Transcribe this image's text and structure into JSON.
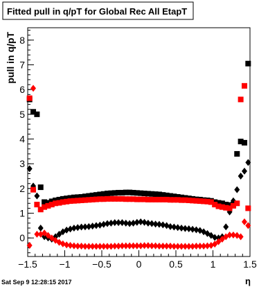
{
  "chart_data": {
    "type": "scatter",
    "title": "Fitted pull in q/pT for Global Rec All EtapT",
    "ylabel": "pull in q/pT",
    "xlabel": "η",
    "footer": "Sat Sep  9 12:28:15 2017",
    "xlim": [
      -1.5,
      1.5
    ],
    "ylim": [
      -0.75,
      8.5
    ],
    "x_ticks": [
      -1.5,
      -1,
      -0.5,
      0,
      0.5,
      1,
      1.5
    ],
    "x_tick_labels": [
      "−1.5",
      "−1",
      "−0.5",
      "0",
      "0.5",
      "1",
      "1.5"
    ],
    "y_ticks": [
      0,
      1,
      2,
      3,
      4,
      5,
      6,
      7,
      8
    ],
    "y_tick_labels": [
      "0",
      "1",
      "2",
      "3",
      "4",
      "5",
      "6",
      "7",
      "8"
    ],
    "grid": false,
    "colors": {
      "black": "#000000",
      "red": "#ff0000"
    },
    "series": [
      {
        "color": "#000000",
        "marker": "square",
        "x": [
          -1.475,
          -1.425,
          -1.375,
          -1.325,
          -1.275,
          -1.225,
          -1.175,
          -1.125,
          -1.075,
          -1.025,
          -0.975,
          -0.925,
          -0.875,
          -0.825,
          -0.775,
          -0.725,
          -0.675,
          -0.625,
          -0.575,
          -0.525,
          -0.475,
          -0.425,
          -0.375,
          -0.325,
          -0.275,
          -0.225,
          -0.175,
          -0.125,
          -0.075,
          -0.025,
          0.025,
          0.075,
          0.125,
          0.175,
          0.225,
          0.275,
          0.325,
          0.375,
          0.425,
          0.475,
          0.525,
          0.575,
          0.625,
          0.675,
          0.725,
          0.775,
          0.825,
          0.875,
          0.925,
          0.975,
          1.025,
          1.075,
          1.125,
          1.175,
          1.225,
          1.275,
          1.325,
          1.375,
          1.425,
          1.475
        ],
        "y": [
          5.6,
          5.1,
          5.0,
          2.05,
          1.45,
          1.42,
          1.48,
          1.52,
          1.55,
          1.58,
          1.6,
          1.62,
          1.64,
          1.65,
          1.66,
          1.68,
          1.7,
          1.72,
          1.74,
          1.76,
          1.78,
          1.8,
          1.81,
          1.82,
          1.83,
          1.83,
          1.84,
          1.84,
          1.83,
          1.82,
          1.81,
          1.8,
          1.79,
          1.78,
          1.77,
          1.76,
          1.74,
          1.72,
          1.7,
          1.68,
          1.66,
          1.64,
          1.62,
          1.6,
          1.58,
          1.56,
          1.55,
          1.53,
          1.52,
          1.5,
          1.45,
          1.42,
          1.4,
          1.35,
          1.33,
          1.35,
          3.4,
          3.9,
          3.85,
          7.05
        ]
      },
      {
        "color": "#000000",
        "marker": "diamond",
        "x": [
          -1.475,
          -1.425,
          -1.375,
          -1.325,
          -1.275,
          -1.225,
          -1.175,
          -1.125,
          -1.075,
          -1.025,
          -0.975,
          -0.925,
          -0.875,
          -0.825,
          -0.775,
          -0.725,
          -0.675,
          -0.625,
          -0.575,
          -0.525,
          -0.475,
          -0.425,
          -0.375,
          -0.325,
          -0.275,
          -0.225,
          -0.175,
          -0.125,
          -0.075,
          -0.025,
          0.025,
          0.075,
          0.125,
          0.175,
          0.225,
          0.275,
          0.325,
          0.375,
          0.425,
          0.475,
          0.525,
          0.575,
          0.625,
          0.675,
          0.725,
          0.775,
          0.825,
          0.875,
          0.925,
          0.975,
          1.025,
          1.075,
          1.125,
          1.175,
          1.225,
          1.275,
          1.325,
          1.375,
          1.425,
          1.475
        ],
        "y": [
          2.8,
          2.1,
          1.7,
          0.4,
          0.05,
          0.0,
          -0.05,
          0.05,
          0.15,
          0.25,
          0.32,
          0.36,
          0.4,
          0.42,
          0.44,
          0.45,
          0.46,
          0.48,
          0.5,
          0.52,
          0.55,
          0.58,
          0.6,
          0.62,
          0.62,
          0.62,
          0.6,
          0.58,
          0.6,
          0.63,
          0.65,
          0.63,
          0.6,
          0.58,
          0.56,
          0.55,
          0.53,
          0.5,
          0.46,
          0.44,
          0.42,
          0.4,
          0.38,
          0.37,
          0.35,
          0.33,
          0.3,
          0.25,
          0.18,
          0.1,
          0.02,
          0.0,
          0.05,
          0.45,
          1.05,
          1.5,
          1.95,
          2.5,
          2.7,
          3.05
        ]
      },
      {
        "color": "#ff0000",
        "marker": "square",
        "x": [
          -1.475,
          -1.425,
          -1.375,
          -1.325,
          -1.275,
          -1.225,
          -1.175,
          -1.125,
          -1.075,
          -1.025,
          -0.975,
          -0.925,
          -0.875,
          -0.825,
          -0.775,
          -0.725,
          -0.675,
          -0.625,
          -0.575,
          -0.525,
          -0.475,
          -0.425,
          -0.375,
          -0.325,
          -0.275,
          -0.225,
          -0.175,
          -0.125,
          -0.075,
          -0.025,
          0.025,
          0.075,
          0.125,
          0.175,
          0.225,
          0.275,
          0.325,
          0.375,
          0.425,
          0.475,
          0.525,
          0.575,
          0.625,
          0.675,
          0.725,
          0.775,
          0.825,
          0.875,
          0.925,
          0.975,
          1.025,
          1.075,
          1.125,
          1.175,
          1.225,
          1.275,
          1.325,
          1.375,
          1.425,
          1.475
        ],
        "y": [
          5.65,
          1.95,
          1.35,
          1.15,
          1.25,
          1.3,
          1.35,
          1.4,
          1.42,
          1.45,
          1.47,
          1.49,
          1.5,
          1.51,
          1.52,
          1.53,
          1.54,
          1.55,
          1.56,
          1.57,
          1.57,
          1.58,
          1.58,
          1.58,
          1.58,
          1.58,
          1.57,
          1.57,
          1.57,
          1.56,
          1.56,
          1.56,
          1.55,
          1.55,
          1.55,
          1.55,
          1.55,
          1.55,
          1.54,
          1.54,
          1.54,
          1.53,
          1.53,
          1.52,
          1.51,
          1.5,
          1.49,
          1.48,
          1.47,
          1.45,
          1.35,
          1.28,
          1.25,
          1.22,
          1.2,
          1.3,
          1.4,
          5.6,
          6.15,
          1.2
        ]
      },
      {
        "color": "#ff0000",
        "marker": "diamond",
        "x": [
          -1.475,
          -1.425,
          -1.375,
          -1.325,
          -1.275,
          -1.225,
          -1.175,
          -1.125,
          -1.075,
          -1.025,
          -0.975,
          -0.925,
          -0.875,
          -0.825,
          -0.775,
          -0.725,
          -0.675,
          -0.625,
          -0.575,
          -0.525,
          -0.475,
          -0.425,
          -0.375,
          -0.325,
          -0.275,
          -0.225,
          -0.175,
          -0.125,
          -0.075,
          -0.025,
          0.025,
          0.075,
          0.125,
          0.175,
          0.225,
          0.275,
          0.325,
          0.375,
          0.425,
          0.475,
          0.525,
          0.575,
          0.625,
          0.675,
          0.725,
          0.775,
          0.825,
          0.875,
          0.925,
          0.975,
          1.025,
          1.075,
          1.125,
          1.175,
          1.225,
          1.275,
          1.325,
          1.375,
          1.425,
          1.475
        ],
        "y": [
          -0.3,
          6.05,
          0.15,
          0.15,
          0.2,
          0.1,
          0.0,
          -0.1,
          -0.18,
          -0.24,
          -0.28,
          -0.3,
          -0.32,
          -0.33,
          -0.33,
          -0.34,
          -0.34,
          -0.34,
          -0.34,
          -0.34,
          -0.34,
          -0.34,
          -0.34,
          -0.33,
          -0.33,
          -0.32,
          -0.32,
          -0.32,
          -0.32,
          -0.32,
          -0.32,
          -0.31,
          -0.31,
          -0.32,
          -0.32,
          -0.33,
          -0.33,
          -0.33,
          -0.33,
          -0.34,
          -0.34,
          -0.34,
          -0.34,
          -0.34,
          -0.34,
          -0.33,
          -0.33,
          -0.33,
          -0.32,
          -0.3,
          -0.25,
          -0.15,
          -0.05,
          0.05,
          0.12,
          0.12,
          0.1,
          0.05,
          0.65,
          0.5
        ]
      }
    ]
  }
}
